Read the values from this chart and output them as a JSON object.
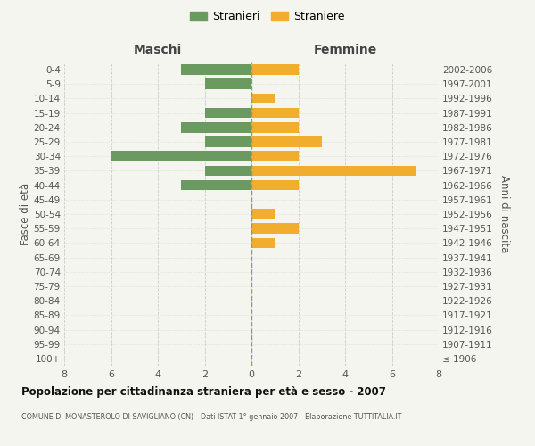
{
  "age_groups": [
    "100+",
    "95-99",
    "90-94",
    "85-89",
    "80-84",
    "75-79",
    "70-74",
    "65-69",
    "60-64",
    "55-59",
    "50-54",
    "45-49",
    "40-44",
    "35-39",
    "30-34",
    "25-29",
    "20-24",
    "15-19",
    "10-14",
    "5-9",
    "0-4"
  ],
  "birth_years": [
    "≤ 1906",
    "1907-1911",
    "1912-1916",
    "1917-1921",
    "1922-1926",
    "1927-1931",
    "1932-1936",
    "1937-1941",
    "1942-1946",
    "1947-1951",
    "1952-1956",
    "1957-1961",
    "1962-1966",
    "1967-1971",
    "1972-1976",
    "1977-1981",
    "1982-1986",
    "1987-1991",
    "1992-1996",
    "1997-2001",
    "2002-2006"
  ],
  "males": [
    0,
    0,
    0,
    0,
    0,
    0,
    0,
    0,
    0,
    0,
    0,
    0,
    3,
    2,
    6,
    2,
    3,
    2,
    0,
    2,
    3
  ],
  "females": [
    0,
    0,
    0,
    0,
    0,
    0,
    0,
    0,
    1,
    2,
    1,
    0,
    2,
    7,
    2,
    3,
    2,
    2,
    1,
    0,
    2
  ],
  "male_color": "#6a9a5f",
  "female_color": "#f0ad2e",
  "title": "Popolazione per cittadinanza straniera per età e sesso - 2007",
  "subtitle": "COMUNE DI MONASTEROLO DI SAVIGLIANO (CN) - Dati ISTAT 1° gennaio 2007 - Elaborazione TUTTITALIA.IT",
  "xlabel_left": "Maschi",
  "xlabel_right": "Femmine",
  "ylabel_left": "Fasce di età",
  "ylabel_right": "Anni di nascita",
  "legend_male": "Stranieri",
  "legend_female": "Straniere",
  "xlim": 8,
  "background_color": "#f5f5f0",
  "grid_color": "#cccccc"
}
